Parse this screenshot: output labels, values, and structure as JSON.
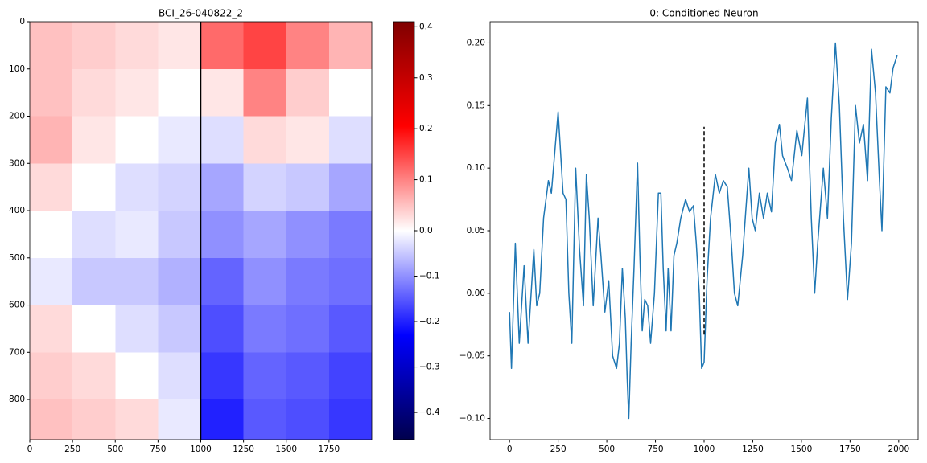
{
  "chart_data": [
    {
      "type": "heatmap",
      "title": "BCI_26-040822_2",
      "x_edges": [
        0,
        250,
        500,
        750,
        1000,
        1250,
        1500,
        1750,
        2000
      ],
      "y_edges": [
        0,
        100,
        200,
        300,
        400,
        500,
        600,
        700,
        800,
        885
      ],
      "values": [
        [
          0.05,
          0.04,
          0.03,
          0.02,
          0.12,
          0.15,
          0.1,
          0.06
        ],
        [
          0.05,
          0.03,
          0.02,
          0.0,
          0.02,
          0.1,
          0.04,
          0.0
        ],
        [
          0.06,
          0.02,
          0.0,
          -0.02,
          -0.03,
          0.03,
          0.02,
          -0.03
        ],
        [
          0.03,
          0.0,
          -0.03,
          -0.04,
          -0.08,
          -0.04,
          -0.05,
          -0.08
        ],
        [
          0.0,
          -0.03,
          -0.02,
          -0.05,
          -0.1,
          -0.08,
          -0.1,
          -0.12
        ],
        [
          -0.02,
          -0.05,
          -0.05,
          -0.07,
          -0.14,
          -0.1,
          -0.12,
          -0.13
        ],
        [
          0.03,
          0.0,
          -0.03,
          -0.05,
          -0.16,
          -0.12,
          -0.13,
          -0.15
        ],
        [
          0.04,
          0.03,
          0.0,
          -0.03,
          -0.18,
          -0.14,
          -0.15,
          -0.17
        ],
        [
          0.05,
          0.04,
          0.03,
          -0.02,
          -0.2,
          -0.15,
          -0.16,
          -0.18
        ]
      ],
      "xlim": [
        0,
        2000
      ],
      "ylim": [
        885,
        0
      ],
      "xticks": [
        0,
        250,
        500,
        750,
        1000,
        1250,
        1500,
        1750
      ],
      "yticks": [
        0,
        100,
        200,
        300,
        400,
        500,
        600,
        700,
        800
      ],
      "vline": {
        "x": 1000,
        "color": "#000000"
      },
      "colormap": "seismic",
      "colorbar": {
        "lim": [
          -0.46,
          0.41
        ],
        "vcenter": 0,
        "ticks": [
          {
            "value": -0.4,
            "label": "−0.4"
          },
          {
            "value": -0.3,
            "label": "−0.3"
          },
          {
            "value": -0.2,
            "label": "−0.2"
          },
          {
            "value": -0.1,
            "label": "−0.1"
          },
          {
            "value": 0,
            "label": "0.0"
          },
          0.1,
          0.2,
          0.3,
          0.4
        ]
      }
    },
    {
      "type": "line",
      "title": "0: Conditioned Neuron",
      "x": [
        0,
        10,
        30,
        50,
        75,
        95,
        125,
        140,
        155,
        175,
        200,
        215,
        250,
        275,
        290,
        305,
        320,
        340,
        360,
        380,
        395,
        410,
        430,
        455,
        470,
        490,
        510,
        530,
        550,
        565,
        580,
        595,
        605,
        613,
        625,
        640,
        658,
        670,
        682,
        695,
        710,
        725,
        745,
        765,
        778,
        790,
        805,
        815,
        830,
        845,
        860,
        880,
        905,
        925,
        945,
        960,
        975,
        987,
        1000,
        1015,
        1033,
        1058,
        1078,
        1099,
        1119,
        1140,
        1156,
        1173,
        1198,
        1214,
        1230,
        1247,
        1263,
        1284,
        1305,
        1325,
        1346,
        1366,
        1387,
        1403,
        1428,
        1449,
        1477,
        1502,
        1531,
        1551,
        1568,
        1584,
        1613,
        1634,
        1654,
        1675,
        1695,
        1716,
        1737,
        1757,
        1778,
        1798,
        1819,
        1840,
        1860,
        1881,
        1901,
        1914,
        1934,
        1955,
        1971,
        1992
      ],
      "values": [
        -0.015,
        -0.06,
        0.04,
        -0.04,
        0.022,
        -0.04,
        0.035,
        -0.01,
        0.0,
        0.06,
        0.09,
        0.08,
        0.145,
        0.08,
        0.075,
        0.0,
        -0.04,
        0.1,
        0.035,
        -0.01,
        0.095,
        0.06,
        -0.01,
        0.06,
        0.03,
        -0.015,
        0.01,
        -0.05,
        -0.06,
        -0.04,
        0.02,
        -0.02,
        -0.07,
        -0.1,
        -0.04,
        0.02,
        0.104,
        0.03,
        -0.03,
        -0.005,
        -0.01,
        -0.04,
        0.0,
        0.08,
        0.08,
        0.02,
        -0.03,
        0.02,
        -0.03,
        0.03,
        0.04,
        0.06,
        0.075,
        0.065,
        0.07,
        0.04,
        0.0,
        -0.06,
        -0.055,
        0.01,
        0.06,
        0.095,
        0.08,
        0.09,
        0.085,
        0.04,
        0.0,
        -0.01,
        0.03,
        0.065,
        0.1,
        0.06,
        0.05,
        0.08,
        0.06,
        0.08,
        0.065,
        0.12,
        0.135,
        0.11,
        0.1,
        0.09,
        0.13,
        0.11,
        0.156,
        0.06,
        0.0,
        0.04,
        0.1,
        0.06,
        0.14,
        0.2,
        0.15,
        0.06,
        -0.005,
        0.04,
        0.15,
        0.12,
        0.135,
        0.09,
        0.195,
        0.16,
        0.09,
        0.05,
        0.165,
        0.16,
        0.18,
        0.19
      ],
      "color": "#1f77b4",
      "xlim": [
        -100,
        2100
      ],
      "ylim": [
        -0.117,
        0.217
      ],
      "xticks": [
        0,
        250,
        500,
        750,
        1000,
        1250,
        1500,
        1750,
        2000
      ],
      "yticks": [
        {
          "value": -0.1,
          "label": "−0.10"
        },
        {
          "value": -0.05,
          "label": "−0.05"
        },
        {
          "value": 0,
          "label": "0.00"
        },
        {
          "value": 0.05,
          "label": "0.05"
        },
        {
          "value": 0.1,
          "label": "0.10"
        },
        {
          "value": 0.15,
          "label": "0.15"
        },
        {
          "value": 0.2,
          "label": "0.20"
        }
      ],
      "vline": {
        "x": 1000,
        "ymin": -0.033,
        "ymax": 0.133,
        "color": "#000000",
        "dashed": true
      }
    }
  ]
}
